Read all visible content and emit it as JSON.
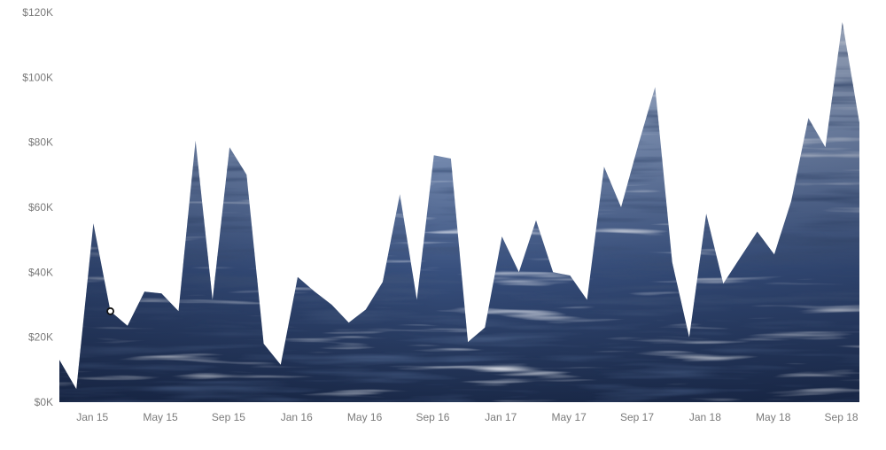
{
  "chart_data": {
    "type": "area",
    "title": "",
    "xlabel": "",
    "ylabel": "",
    "x_start": "2014-12",
    "x_end": "2018-11",
    "x_tick_labels": [
      {
        "label": "Jan 15",
        "x": "2015-01"
      },
      {
        "label": "May 15",
        "x": "2015-05"
      },
      {
        "label": "Sep 15",
        "x": "2015-09"
      },
      {
        "label": "Jan 16",
        "x": "2016-01"
      },
      {
        "label": "May 16",
        "x": "2016-05"
      },
      {
        "label": "Sep 16",
        "x": "2016-09"
      },
      {
        "label": "Jan 17",
        "x": "2017-01"
      },
      {
        "label": "May 17",
        "x": "2017-05"
      },
      {
        "label": "Sep 17",
        "x": "2017-09"
      },
      {
        "label": "Jan 18",
        "x": "2018-01"
      },
      {
        "label": "May 18",
        "x": "2018-05"
      },
      {
        "label": "Sep 18",
        "x": "2018-09"
      }
    ],
    "y_ticks": [
      0,
      20000,
      40000,
      60000,
      80000,
      100000,
      120000
    ],
    "y_tick_labels": [
      "$0K",
      "$20K",
      "$40K",
      "$60K",
      "$80K",
      "$100K",
      "$120K"
    ],
    "ylim": [
      0,
      120000
    ],
    "grid": false,
    "fill_style": "water-texture",
    "series": [
      {
        "x": [
          "2014-12",
          "2015-01",
          "2015-02",
          "2015-03",
          "2015-04",
          "2015-05",
          "2015-06",
          "2015-07",
          "2015-08",
          "2015-09",
          "2015-10",
          "2015-11",
          "2015-12",
          "2016-01",
          "2016-02",
          "2016-03",
          "2016-04",
          "2016-05",
          "2016-06",
          "2016-07",
          "2016-08",
          "2016-09",
          "2016-10",
          "2016-11",
          "2016-12",
          "2017-01",
          "2017-02",
          "2017-03",
          "2017-04",
          "2017-05",
          "2017-06",
          "2017-07",
          "2017-08",
          "2017-09",
          "2017-10",
          "2017-11",
          "2017-12",
          "2018-01",
          "2018-02",
          "2018-03",
          "2018-04",
          "2018-05",
          "2018-06",
          "2018-07",
          "2018-08",
          "2018-09",
          "2018-10",
          "2018-11"
        ],
        "values": [
          13000,
          4000,
          55000,
          28000,
          23500,
          34000,
          33500,
          28000,
          80500,
          31500,
          78500,
          70000,
          18000,
          11500,
          38500,
          34000,
          30000,
          24500,
          28500,
          37000,
          64000,
          31500,
          76000,
          75000,
          18500,
          23000,
          51000,
          40000,
          56000,
          40000,
          39000,
          31500,
          72500,
          60000,
          79000,
          97000,
          43000,
          20000,
          58000,
          36500,
          44500,
          52500,
          45500,
          62000,
          87500,
          78500,
          117000,
          86000
        ],
        "highlight_index": 3
      }
    ]
  }
}
